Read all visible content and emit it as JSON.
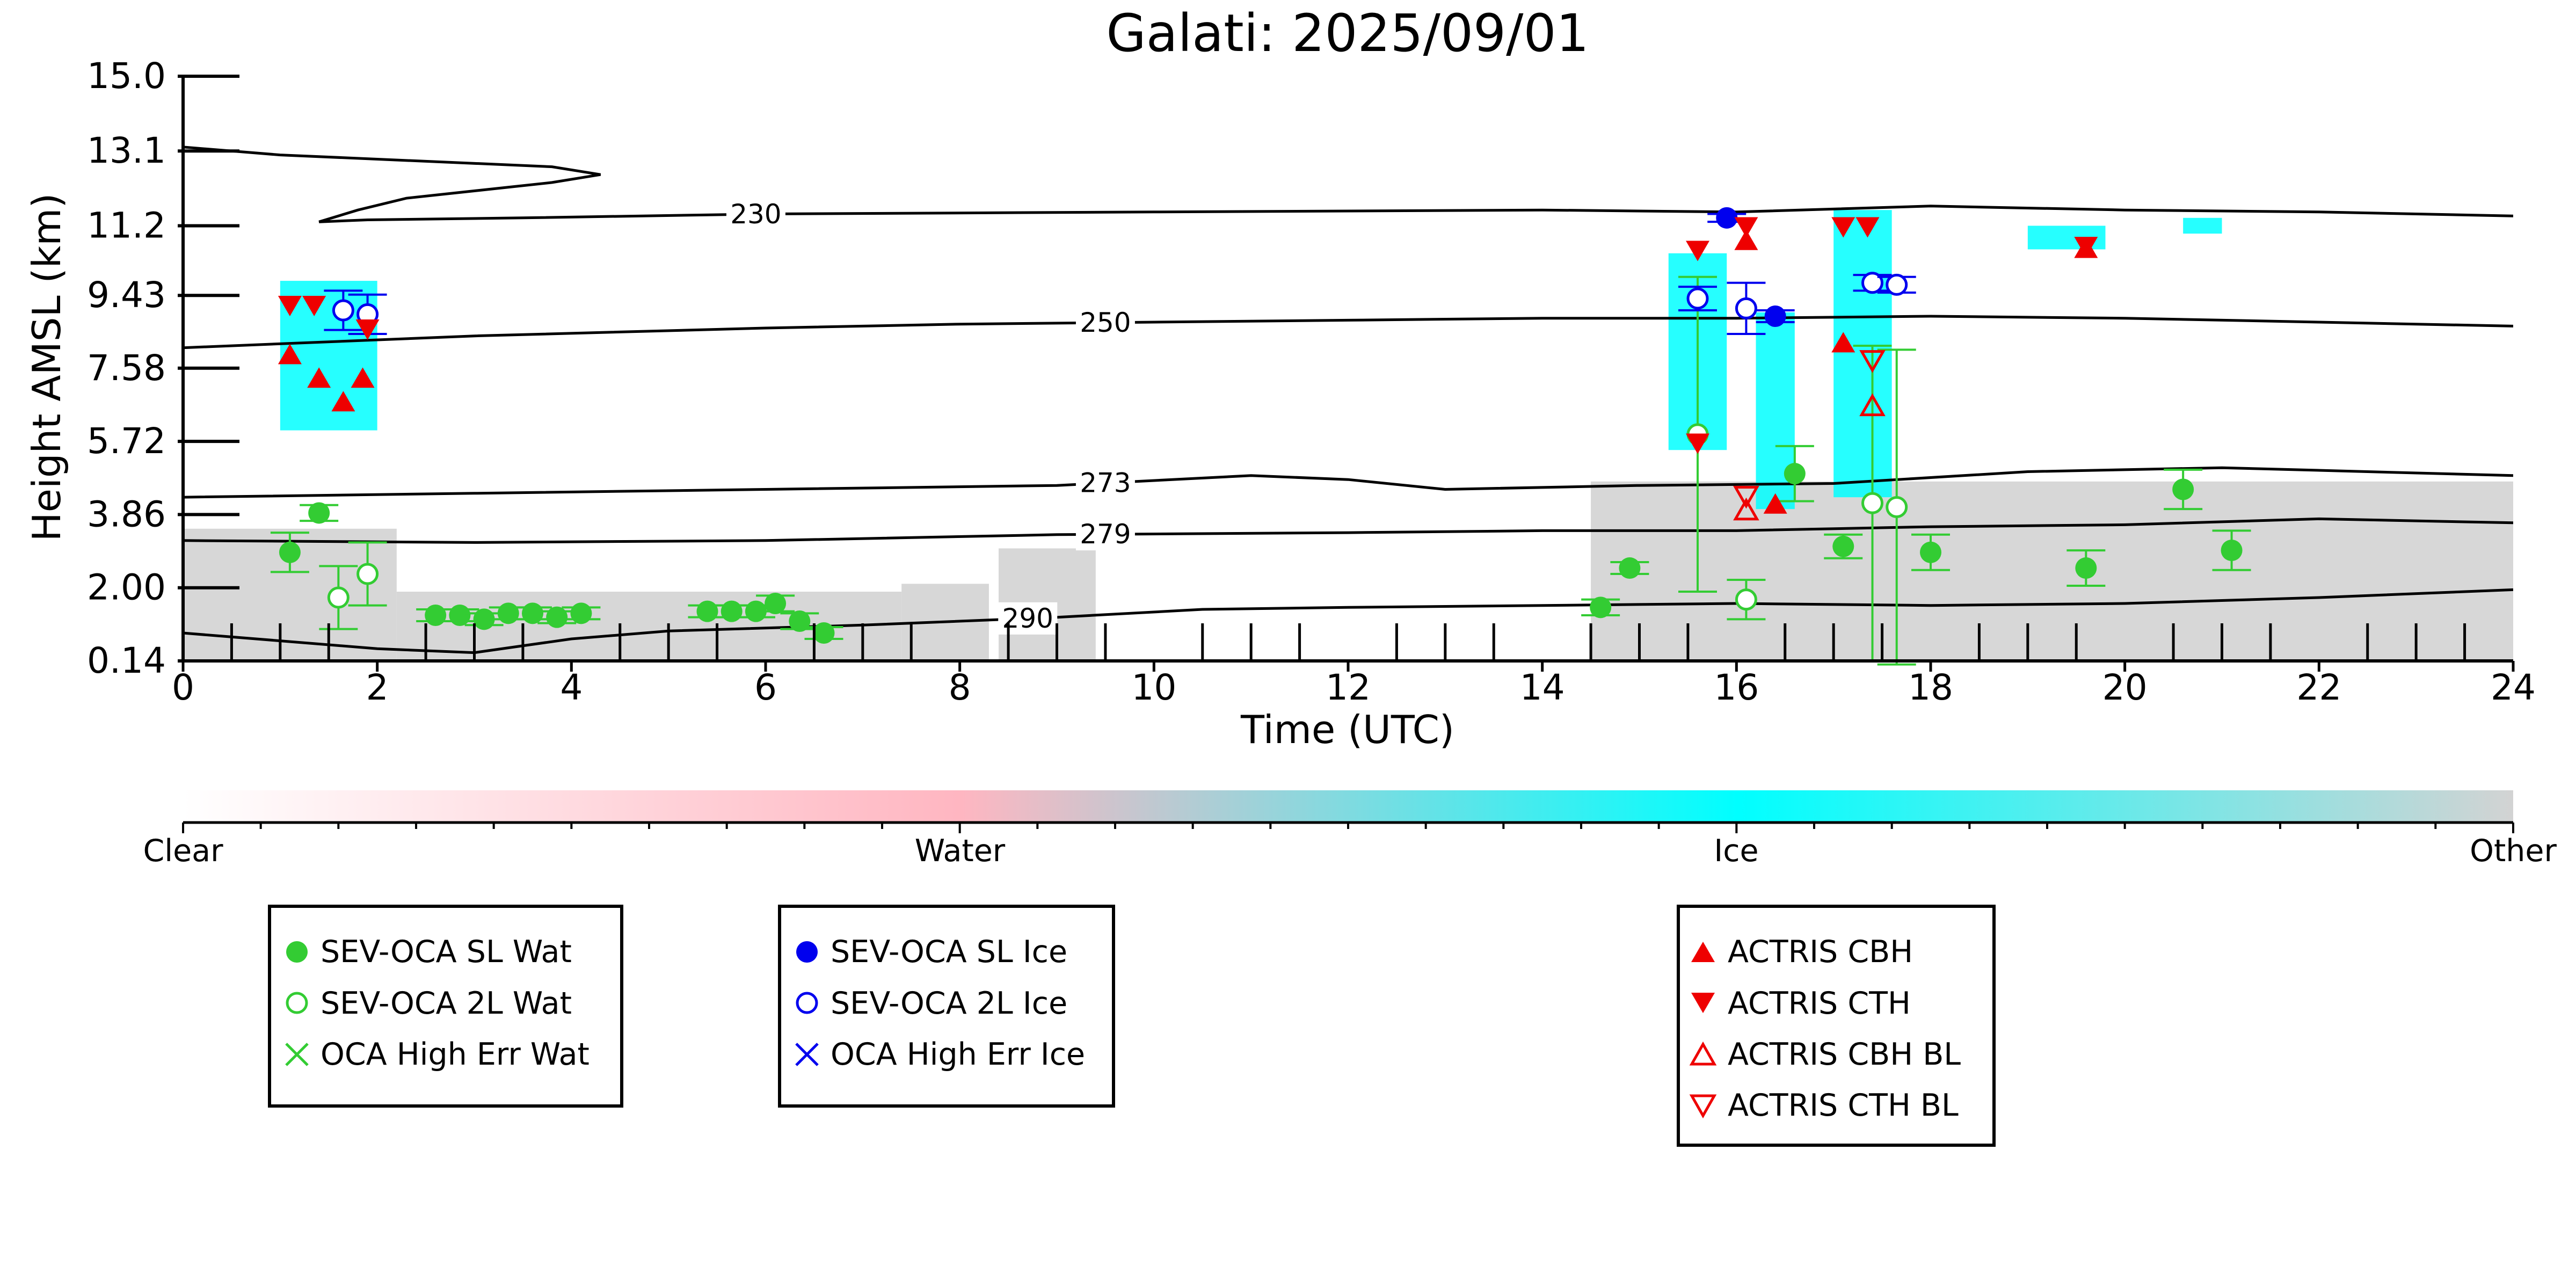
{
  "chart_data": {
    "type": "scatter",
    "title": "Galati: 2025/09/01",
    "xlabel": "Time (UTC)",
    "ylabel": "Height AMSL (km)",
    "xlim": [
      0,
      24
    ],
    "ylim": [
      0.14,
      15.0
    ],
    "x_ticks": [
      0,
      2,
      4,
      6,
      8,
      10,
      12,
      14,
      16,
      18,
      20,
      22,
      24
    ],
    "y_ticks": [
      0.14,
      2.0,
      3.86,
      5.72,
      7.58,
      9.43,
      11.2,
      13.1,
      15.0
    ],
    "y_tick_labels": [
      "0.14",
      "2.00",
      "3.86",
      "5.72",
      "7.58",
      "9.43",
      "11.2",
      "13.1",
      "15.0"
    ],
    "colorbar": {
      "labels": [
        "Clear",
        "Water",
        "Ice",
        "Other"
      ],
      "colors": [
        "#ffffff",
        "#ffb6c1",
        "#00ffff",
        "#d3d3d3"
      ]
    },
    "temperature_contours": [
      {
        "label": "230",
        "label_x": 5.9,
        "points": [
          [
            0,
            13.2
          ],
          [
            1.0,
            13.0
          ],
          [
            3.8,
            12.7
          ],
          [
            4.3,
            12.5
          ],
          [
            3.8,
            12.3
          ],
          [
            2.3,
            11.9
          ],
          [
            1.8,
            11.6
          ],
          [
            1.4,
            11.3
          ],
          [
            1.9,
            11.35
          ],
          [
            3.5,
            11.4
          ],
          [
            6,
            11.5
          ],
          [
            10,
            11.55
          ],
          [
            14,
            11.6
          ],
          [
            16,
            11.55
          ],
          [
            18,
            11.7
          ],
          [
            20,
            11.6
          ],
          [
            22,
            11.55
          ],
          [
            24,
            11.45
          ]
        ]
      },
      {
        "label": "250",
        "label_x": 9.5,
        "points": [
          [
            0,
            8.1
          ],
          [
            3,
            8.4
          ],
          [
            6,
            8.6
          ],
          [
            8,
            8.7
          ],
          [
            10,
            8.75
          ],
          [
            12,
            8.8
          ],
          [
            14,
            8.85
          ],
          [
            16,
            8.85
          ],
          [
            18,
            8.9
          ],
          [
            20,
            8.85
          ],
          [
            22,
            8.75
          ],
          [
            24,
            8.65
          ]
        ]
      },
      {
        "label": "273",
        "label_x": 9.5,
        "points": [
          [
            0,
            4.3
          ],
          [
            3,
            4.4
          ],
          [
            6,
            4.5
          ],
          [
            9,
            4.6
          ],
          [
            11,
            4.85
          ],
          [
            12,
            4.75
          ],
          [
            13,
            4.5
          ],
          [
            15,
            4.6
          ],
          [
            17,
            4.65
          ],
          [
            19,
            4.95
          ],
          [
            21,
            5.05
          ],
          [
            24,
            4.85
          ]
        ]
      },
      {
        "label": "279",
        "label_x": 9.5,
        "points": [
          [
            0,
            3.2
          ],
          [
            3,
            3.15
          ],
          [
            6,
            3.2
          ],
          [
            9,
            3.35
          ],
          [
            12,
            3.4
          ],
          [
            14,
            3.45
          ],
          [
            16,
            3.45
          ],
          [
            18,
            3.55
          ],
          [
            20,
            3.6
          ],
          [
            22,
            3.75
          ],
          [
            24,
            3.65
          ]
        ]
      },
      {
        "label": "290",
        "label_x": 8.7,
        "points": [
          [
            0,
            0.85
          ],
          [
            1.0,
            0.65
          ],
          [
            2.0,
            0.45
          ],
          [
            3.0,
            0.35
          ],
          [
            4.0,
            0.7
          ],
          [
            5.0,
            0.9
          ],
          [
            7.0,
            1.05
          ],
          [
            9.0,
            1.25
          ],
          [
            10.5,
            1.45
          ],
          [
            12,
            1.5
          ],
          [
            14,
            1.55
          ],
          [
            16,
            1.6
          ],
          [
            18,
            1.55
          ],
          [
            20,
            1.6
          ],
          [
            22,
            1.75
          ],
          [
            24,
            1.95
          ]
        ]
      }
    ],
    "series": [
      {
        "name": "SEV-OCA SL Wat",
        "color": "#33cc33",
        "marker": "filled-circle",
        "points": [
          [
            1.1,
            2.9,
            0.5
          ],
          [
            1.4,
            3.9,
            0.2
          ],
          [
            2.6,
            1.3,
            0.15
          ],
          [
            2.85,
            1.3,
            0.15
          ],
          [
            3.1,
            1.2,
            0.15
          ],
          [
            3.35,
            1.35,
            0.15
          ],
          [
            3.6,
            1.35,
            0.15
          ],
          [
            3.85,
            1.25,
            0.15
          ],
          [
            4.1,
            1.35,
            0.15
          ],
          [
            5.4,
            1.4,
            0.15
          ],
          [
            5.65,
            1.4,
            0.15
          ],
          [
            5.9,
            1.4,
            0.15
          ],
          [
            6.1,
            1.6,
            0.2
          ],
          [
            6.35,
            1.15,
            0.2
          ],
          [
            6.6,
            0.85,
            0.15
          ],
          [
            14.6,
            1.5,
            0.2
          ],
          [
            14.9,
            2.5,
            0.15
          ],
          [
            16.6,
            4.9,
            0.7
          ],
          [
            17.1,
            3.05,
            0.3
          ],
          [
            18.0,
            2.9,
            0.45
          ],
          [
            19.6,
            2.5,
            0.45
          ],
          [
            20.6,
            4.5,
            0.5
          ],
          [
            21.1,
            2.95,
            0.5
          ]
        ]
      },
      {
        "name": "SEV-OCA 2L Wat",
        "color": "#33cc33",
        "marker": "open-circle",
        "points": [
          [
            1.6,
            1.75,
            0.8
          ],
          [
            1.9,
            2.35,
            0.8
          ],
          [
            15.6,
            5.9,
            4.0
          ],
          [
            16.1,
            1.7,
            0.5
          ],
          [
            17.4,
            4.15,
            4.0
          ],
          [
            17.65,
            4.05,
            4.0
          ]
        ]
      },
      {
        "name": "OCA High Err Wat",
        "color": "#33cc33",
        "marker": "x",
        "points": []
      },
      {
        "name": "SEV-OCA SL Ice",
        "color": "#0000ee",
        "marker": "filled-circle",
        "points": [
          [
            15.9,
            11.4,
            0.1
          ],
          [
            16.4,
            8.9,
            0.15
          ]
        ]
      },
      {
        "name": "SEV-OCA 2L Ice",
        "color": "#0000ee",
        "marker": "open-circle",
        "points": [
          [
            1.65,
            9.05,
            0.5
          ],
          [
            1.9,
            8.95,
            0.5
          ],
          [
            15.6,
            9.35,
            0.3
          ],
          [
            16.1,
            9.1,
            0.65
          ],
          [
            17.4,
            9.75,
            0.2
          ],
          [
            17.65,
            9.7,
            0.2
          ]
        ]
      },
      {
        "name": "OCA High Err Ice",
        "color": "#0000ee",
        "marker": "x",
        "points": []
      },
      {
        "name": "ACTRIS CBH",
        "color": "#ee0000",
        "marker": "triangle-up-filled",
        "points": [
          [
            1.1,
            7.9
          ],
          [
            1.4,
            7.3
          ],
          [
            1.65,
            6.7
          ],
          [
            1.85,
            7.3
          ],
          [
            16.1,
            10.8
          ],
          [
            16.4,
            4.1
          ],
          [
            17.1,
            8.2
          ],
          [
            19.6,
            10.6
          ]
        ]
      },
      {
        "name": "ACTRIS CTH",
        "color": "#ee0000",
        "marker": "triangle-down-filled",
        "points": [
          [
            1.1,
            9.2
          ],
          [
            1.35,
            9.2
          ],
          [
            1.9,
            8.6
          ],
          [
            15.6,
            10.6
          ],
          [
            15.6,
            5.7
          ],
          [
            16.1,
            11.2
          ],
          [
            17.1,
            11.2
          ],
          [
            17.35,
            11.2
          ],
          [
            19.6,
            10.7
          ]
        ]
      },
      {
        "name": "ACTRIS CBH BL",
        "color": "#ee0000",
        "marker": "triangle-up-open",
        "points": [
          [
            16.1,
            3.95
          ],
          [
            17.4,
            6.6
          ]
        ]
      },
      {
        "name": "ACTRIS CTH BL",
        "color": "#ee0000",
        "marker": "triangle-down-open",
        "points": [
          [
            16.1,
            4.35
          ],
          [
            17.4,
            7.8
          ]
        ]
      }
    ],
    "background": {
      "description_free": true,
      "ice_clouds": [
        [
          1.0,
          2.0,
          6.0,
          9.8
        ],
        [
          15.3,
          15.9,
          5.5,
          10.5
        ],
        [
          16.2,
          16.6,
          4.0,
          9.0
        ],
        [
          17.0,
          17.6,
          4.3,
          11.6
        ],
        [
          19.0,
          19.8,
          10.6,
          11.2
        ],
        [
          20.6,
          21.0,
          11.0,
          11.4
        ]
      ],
      "other_layers": [
        [
          0,
          2.2,
          0.14,
          3.5
        ],
        [
          2.2,
          7.4,
          0.14,
          1.9
        ],
        [
          7.4,
          8.3,
          0.14,
          2.1
        ],
        [
          8.4,
          9.4,
          0.14,
          3.0
        ],
        [
          14.5,
          24,
          0.14,
          4.7
        ]
      ]
    },
    "legend": [
      {
        "group": 1,
        "entries": [
          "SEV-OCA SL Wat",
          "SEV-OCA 2L Wat",
          "OCA High Err Wat"
        ]
      },
      {
        "group": 2,
        "entries": [
          "SEV-OCA SL Ice",
          "SEV-OCA 2L Ice",
          "OCA High Err Ice"
        ]
      },
      {
        "group": 3,
        "entries": [
          "ACTRIS CBH",
          "ACTRIS CTH",
          "ACTRIS CBH BL",
          "ACTRIS CTH BL"
        ]
      }
    ],
    "grid": false
  }
}
